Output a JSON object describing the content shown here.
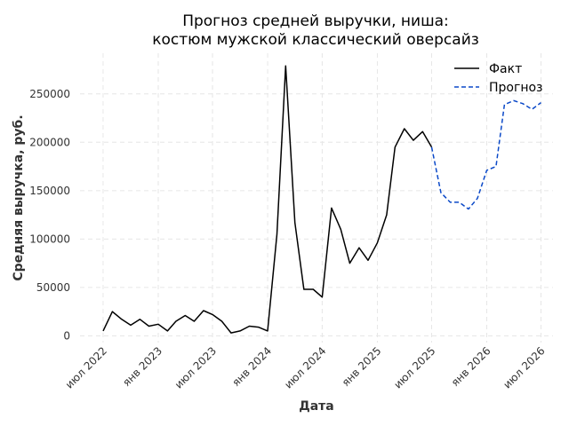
{
  "chart_data": {
    "type": "line",
    "title_line1": "Прогноз средней выручки, ниша:",
    "title_line2": "костюм мужской классический оверсайз",
    "xlabel": "Дата",
    "ylabel": "Средняя выручка, руб.",
    "ylim": [
      -7000,
      292000
    ],
    "xlim": [
      "2022-04-15",
      "2026-08-10"
    ],
    "grid": true,
    "legend_position": "top-right",
    "yticks": [
      0,
      50000,
      100000,
      150000,
      200000,
      250000
    ],
    "xticks": [
      {
        "date": "2022-07-01",
        "label": "июл 2022"
      },
      {
        "date": "2023-01-01",
        "label": "янв 2023"
      },
      {
        "date": "2023-07-01",
        "label": "июл 2023"
      },
      {
        "date": "2024-01-01",
        "label": "янв 2024"
      },
      {
        "date": "2024-07-01",
        "label": "июл 2024"
      },
      {
        "date": "2025-01-01",
        "label": "янв 2025"
      },
      {
        "date": "2025-07-01",
        "label": "июл 2025"
      },
      {
        "date": "2026-01-01",
        "label": "янв 2026"
      },
      {
        "date": "2026-07-01",
        "label": "июл 2026"
      }
    ],
    "series": [
      {
        "name": "Факт",
        "color": "#000000",
        "style": "solid",
        "x": [
          "2022-07-01",
          "2022-08-01",
          "2022-09-01",
          "2022-10-01",
          "2022-11-01",
          "2022-12-01",
          "2023-01-01",
          "2023-02-01",
          "2023-03-01",
          "2023-04-01",
          "2023-05-01",
          "2023-06-01",
          "2023-07-01",
          "2023-08-01",
          "2023-09-01",
          "2023-10-01",
          "2023-11-01",
          "2023-12-01",
          "2024-01-01",
          "2024-02-01",
          "2024-03-01",
          "2024-04-01",
          "2024-05-01",
          "2024-06-01",
          "2024-07-01",
          "2024-08-01",
          "2024-09-01",
          "2024-10-01",
          "2024-11-01",
          "2024-12-01",
          "2025-01-01",
          "2025-02-01",
          "2025-03-01",
          "2025-04-01",
          "2025-05-01",
          "2025-06-01",
          "2025-07-01"
        ],
        "values": [
          5000,
          25000,
          17000,
          11000,
          17000,
          10000,
          12000,
          5000,
          15000,
          21000,
          15000,
          26000,
          22000,
          15000,
          3000,
          5000,
          10000,
          9000,
          5000,
          105000,
          279000,
          117000,
          48000,
          48000,
          40000,
          132000,
          110000,
          75000,
          91000,
          78000,
          96000,
          125000,
          195000,
          214000,
          202000,
          211000,
          195000
        ]
      },
      {
        "name": "Прогноз",
        "color": "#0b49c8",
        "style": "dashed",
        "x": [
          "2025-07-01",
          "2025-08-01",
          "2025-09-01",
          "2025-10-01",
          "2025-11-01",
          "2025-12-01",
          "2026-01-01",
          "2026-02-01",
          "2026-03-01",
          "2026-04-01",
          "2026-05-01",
          "2026-06-01",
          "2026-07-01"
        ],
        "values": [
          195000,
          148000,
          138000,
          138000,
          131000,
          142000,
          171000,
          175000,
          239000,
          243000,
          240000,
          234000,
          241000
        ]
      }
    ]
  }
}
